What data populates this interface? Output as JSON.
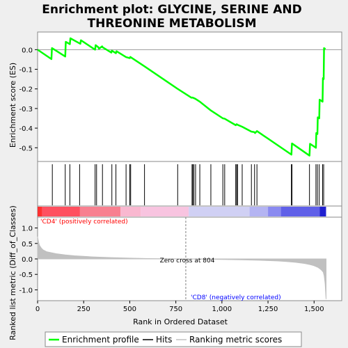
{
  "chart_data": {
    "type": "line",
    "title_lines": [
      "Enrichment plot: GLYCINE, SERINE AND",
      "THREONINE METABOLISM"
    ],
    "xlabel": "Rank in Ordered Dataset",
    "xlim": [
      0,
      1650
    ],
    "xticks": [
      0,
      250,
      500,
      750,
      1000,
      1250,
      1500
    ],
    "es_panel": {
      "ylabel": "Enrichment score (ES)",
      "ylim": [
        -0.57,
        0.09
      ],
      "yticks": [
        0.0,
        -0.1,
        -0.2,
        -0.3,
        -0.4,
        -0.5
      ],
      "ytick_labels": [
        "0.0",
        "-0.1",
        "-0.2",
        "-0.3",
        "-0.4",
        "-0.5"
      ],
      "color": "#00ff00",
      "profile_x": [
        0,
        75,
        78,
        150,
        153,
        175,
        178,
        232,
        235,
        312,
        315,
        330,
        333,
        350,
        353,
        400,
        403,
        425,
        428,
        480,
        500,
        503,
        580,
        760,
        835,
        840,
        845,
        855,
        880,
        940,
        1005,
        1015,
        1075,
        1080,
        1085,
        1110,
        1160,
        1175,
        1180,
        1190,
        1377,
        1380,
        1475,
        1478,
        1510,
        1512,
        1518,
        1520,
        1528,
        1530,
        1546,
        1548,
        1552,
        1554,
        1562
      ],
      "profile_y": [
        0.0,
        -0.048,
        0.008,
        -0.035,
        0.04,
        0.028,
        0.058,
        0.03,
        0.048,
        0.0,
        0.023,
        0.012,
        0.005,
        0.017,
        0.012,
        -0.015,
        -0.005,
        -0.018,
        -0.008,
        -0.038,
        -0.043,
        -0.037,
        -0.085,
        -0.2,
        -0.245,
        -0.244,
        -0.246,
        -0.25,
        -0.265,
        -0.31,
        -0.35,
        -0.352,
        -0.385,
        -0.38,
        -0.383,
        -0.393,
        -0.418,
        -0.42,
        -0.425,
        -0.415,
        -0.535,
        -0.478,
        -0.54,
        -0.48,
        -0.5,
        -0.425,
        -0.43,
        -0.345,
        -0.35,
        -0.255,
        -0.265,
        -0.145,
        -0.15,
        0.008,
        0.003
      ]
    },
    "hits_x": [
      80,
      150,
      175,
      228,
      312,
      320,
      352,
      403,
      425,
      480,
      500,
      505,
      580,
      760,
      838,
      842,
      848,
      857,
      880,
      940,
      1005,
      1015,
      1075,
      1080,
      1085,
      1110,
      1160,
      1177,
      1190,
      1377,
      1380,
      1475,
      1510,
      1518,
      1528,
      1546,
      1552
    ],
    "hits_color": "#000000",
    "metric_panel": {
      "ylabel": "Ranked list metric (Diff_of_Classes)",
      "ylim": [
        -1.35,
        1.35
      ],
      "yticks": [
        1.0,
        0.5,
        0.0,
        -0.5,
        -1.0
      ],
      "ytick_labels": [
        "1.0",
        "0.5",
        "0.0",
        "-0.5",
        "-1.0"
      ],
      "fill_color": "#c0c0c0",
      "rank_x": [
        0,
        5,
        10,
        20,
        30,
        50,
        75,
        100,
        150,
        200,
        300,
        400,
        500,
        600,
        700,
        804,
        900,
        1000,
        1100,
        1200,
        1300,
        1350,
        1400,
        1450,
        1480,
        1500,
        1520,
        1530,
        1540,
        1550,
        1555,
        1560,
        1565
      ],
      "metric": [
        0.72,
        0.55,
        0.44,
        0.35,
        0.29,
        0.23,
        0.2,
        0.17,
        0.13,
        0.1,
        0.065,
        0.042,
        0.025,
        0.012,
        0.005,
        0.0,
        -0.008,
        -0.016,
        -0.028,
        -0.042,
        -0.065,
        -0.085,
        -0.11,
        -0.15,
        -0.185,
        -0.22,
        -0.27,
        -0.31,
        -0.36,
        -0.43,
        -0.55,
        -0.8,
        -1.3
      ],
      "zero_cross_label": "Zero cross at 804",
      "zero_cross_x": 804,
      "pos_label": "'CD4' (positively correlated)",
      "pos_color": "#ff0000",
      "neg_label": "'CD8' (negatively correlated)",
      "neg_color": "#0000ff"
    },
    "gradient_bar": {
      "blocks": [
        {
          "from": 0,
          "to": 25,
          "color": "#ff3030"
        },
        {
          "from": 25,
          "to": 230,
          "color": "#ff5060"
        },
        {
          "from": 230,
          "to": 450,
          "color": "#f88090"
        },
        {
          "from": 450,
          "to": 560,
          "color": "#f9b8d0"
        },
        {
          "from": 560,
          "to": 820,
          "color": "#f8c4e0"
        },
        {
          "from": 820,
          "to": 1150,
          "color": "#d0d0f4"
        },
        {
          "from": 1150,
          "to": 1250,
          "color": "#b4b4f2"
        },
        {
          "from": 1250,
          "to": 1320,
          "color": "#8a8af0"
        },
        {
          "from": 1320,
          "to": 1530,
          "color": "#6060e8"
        },
        {
          "from": 1530,
          "to": 1565,
          "color": "#2020d0"
        }
      ]
    },
    "legend": [
      {
        "label": "Enrichment profile",
        "color": "#00ff00"
      },
      {
        "label": "Hits",
        "color": "#000000"
      },
      {
        "label": "Ranking metric scores",
        "color": "#c0c0c0"
      }
    ]
  }
}
